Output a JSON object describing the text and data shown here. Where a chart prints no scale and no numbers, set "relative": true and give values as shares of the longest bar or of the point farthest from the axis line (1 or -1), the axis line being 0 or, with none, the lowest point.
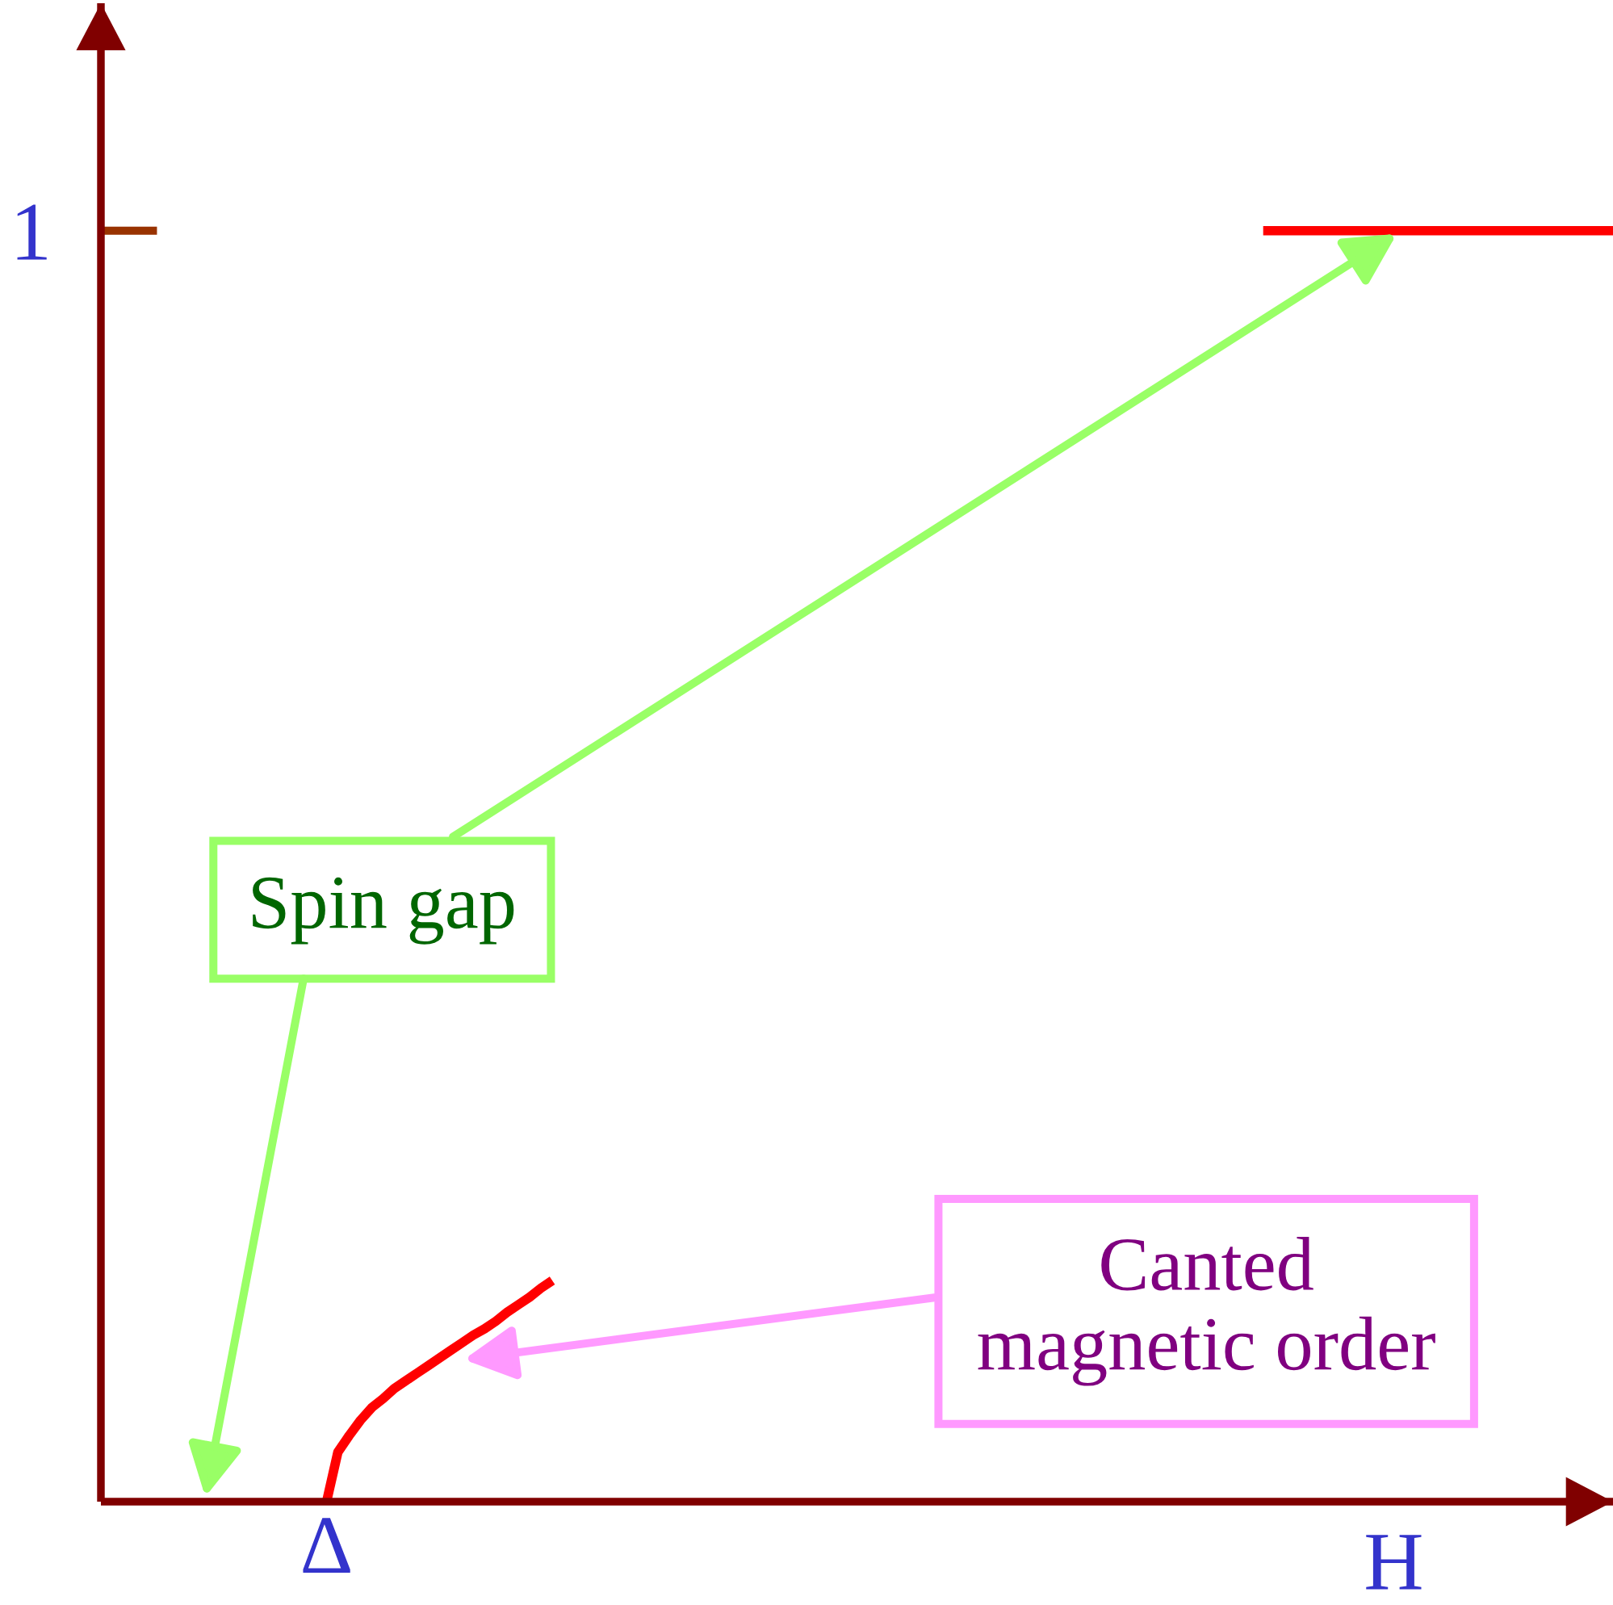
{
  "chart_data": {
    "type": "line",
    "relative": true,
    "xlabel": "H",
    "line_style": "solid",
    "categories": [
      null,
      null,
      null,
      null,
      null,
      null,
      null,
      null,
      null,
      null,
      null,
      null,
      null,
      null,
      null,
      null,
      null,
      null,
      null,
      null,
      null,
      null,
      null,
      null,
      null,
      null,
      null,
      null,
      null,
      null,
      null,
      null,
      null,
      null,
      null,
      null,
      null,
      null,
      null,
      null,
      null,
      null,
      null,
      null,
      null,
      null,
      null,
      null,
      null,
      null,
      null,
      null,
      null,
      null,
      null,
      null,
      null,
      null,
      null,
      null,
      null,
      null,
      null,
      null,
      null,
      null,
      null,
      null,
      null,
      null,
      null,
      null,
      null,
      null,
      null,
      null,
      null,
      null,
      null,
      null,
      null,
      null,
      null,
      null,
      null,
      null,
      null,
      null,
      null,
      null,
      null,
      null,
      null,
      null,
      null,
      null,
      null,
      null,
      null,
      null,
      null,
      null,
      null,
      null,
      null,
      null,
      null,
      null,
      null,
      null,
      null,
      null,
      null,
      null,
      null,
      null,
      null,
      null,
      null,
      null,
      null,
      null,
      null,
      null,
      null,
      null,
      null,
      null,
      null,
      null,
      null,
      null,
      null,
      null,
      null
    ],
    "series": [
      {
        "color": "#ff0000",
        "values": [
          null,
          null,
          null,
          null,
          null,
          null,
          null,
          null,
          null,
          null,
          null,
          null,
          null,
          null,
          null,
          null,
          null,
          null,
          null,
          null,
          0,
          0.039,
          0.052,
          0.064,
          0.074,
          0.081,
          0.089,
          0.095,
          0.101,
          0.107,
          0.113,
          0.119,
          0.125,
          0.131,
          0.136,
          0.142,
          0.149,
          0.155,
          0.161,
          0.168,
          0.174,
          null,
          null,
          null,
          null,
          null,
          null,
          null,
          null,
          null,
          null,
          null,
          null,
          null,
          null,
          null,
          null,
          null,
          null,
          null,
          null,
          null,
          null,
          null,
          null,
          null,
          null,
          null,
          null,
          null,
          null,
          null,
          null,
          null,
          null,
          null,
          null,
          null,
          null,
          null,
          null,
          null,
          null,
          null,
          null,
          null,
          null,
          null,
          null,
          null,
          null,
          null,
          null,
          null,
          null,
          null,
          null,
          null,
          null,
          null,
          null,
          null,
          null,
          null,
          null,
          null,
          null,
          null,
          null,
          null,
          null,
          null,
          null,
          null,
          null,
          null,
          null,
          null,
          null,
          null,
          null,
          null,
          null,
          null,
          null,
          null,
          null,
          null,
          null,
          null,
          null,
          null,
          null,
          null,
          null
        ]
      },
      {
        "color": "#ff0000",
        "values": [
          null,
          null,
          null,
          null,
          null,
          null,
          null,
          null,
          null,
          null,
          null,
          null,
          null,
          null,
          null,
          null,
          null,
          null,
          null,
          null,
          null,
          null,
          null,
          null,
          null,
          null,
          null,
          null,
          null,
          null,
          null,
          null,
          null,
          null,
          null,
          null,
          null,
          null,
          null,
          null,
          null,
          null,
          null,
          null,
          null,
          null,
          null,
          null,
          null,
          null,
          null,
          null,
          null,
          null,
          null,
          null,
          null,
          null,
          null,
          null,
          null,
          null,
          null,
          null,
          null,
          null,
          null,
          null,
          null,
          null,
          null,
          null,
          null,
          null,
          null,
          null,
          null,
          null,
          null,
          null,
          null,
          null,
          null,
          null,
          null,
          null,
          null,
          null,
          null,
          null,
          null,
          null,
          null,
          null,
          null,
          null,
          null,
          null,
          null,
          null,
          null,
          null,
          null,
          1,
          1,
          1,
          1,
          1,
          1,
          1,
          1,
          1,
          1,
          1,
          1,
          1,
          1,
          1,
          1,
          1,
          1,
          1,
          1,
          1,
          1,
          1,
          1,
          1,
          1,
          1,
          1,
          1,
          1,
          1,
          1
        ]
      }
    ],
    "annotations": [
      "1",
      "Spin gap",
      "Canted\nmagnetic order",
      "Δ"
    ]
  }
}
